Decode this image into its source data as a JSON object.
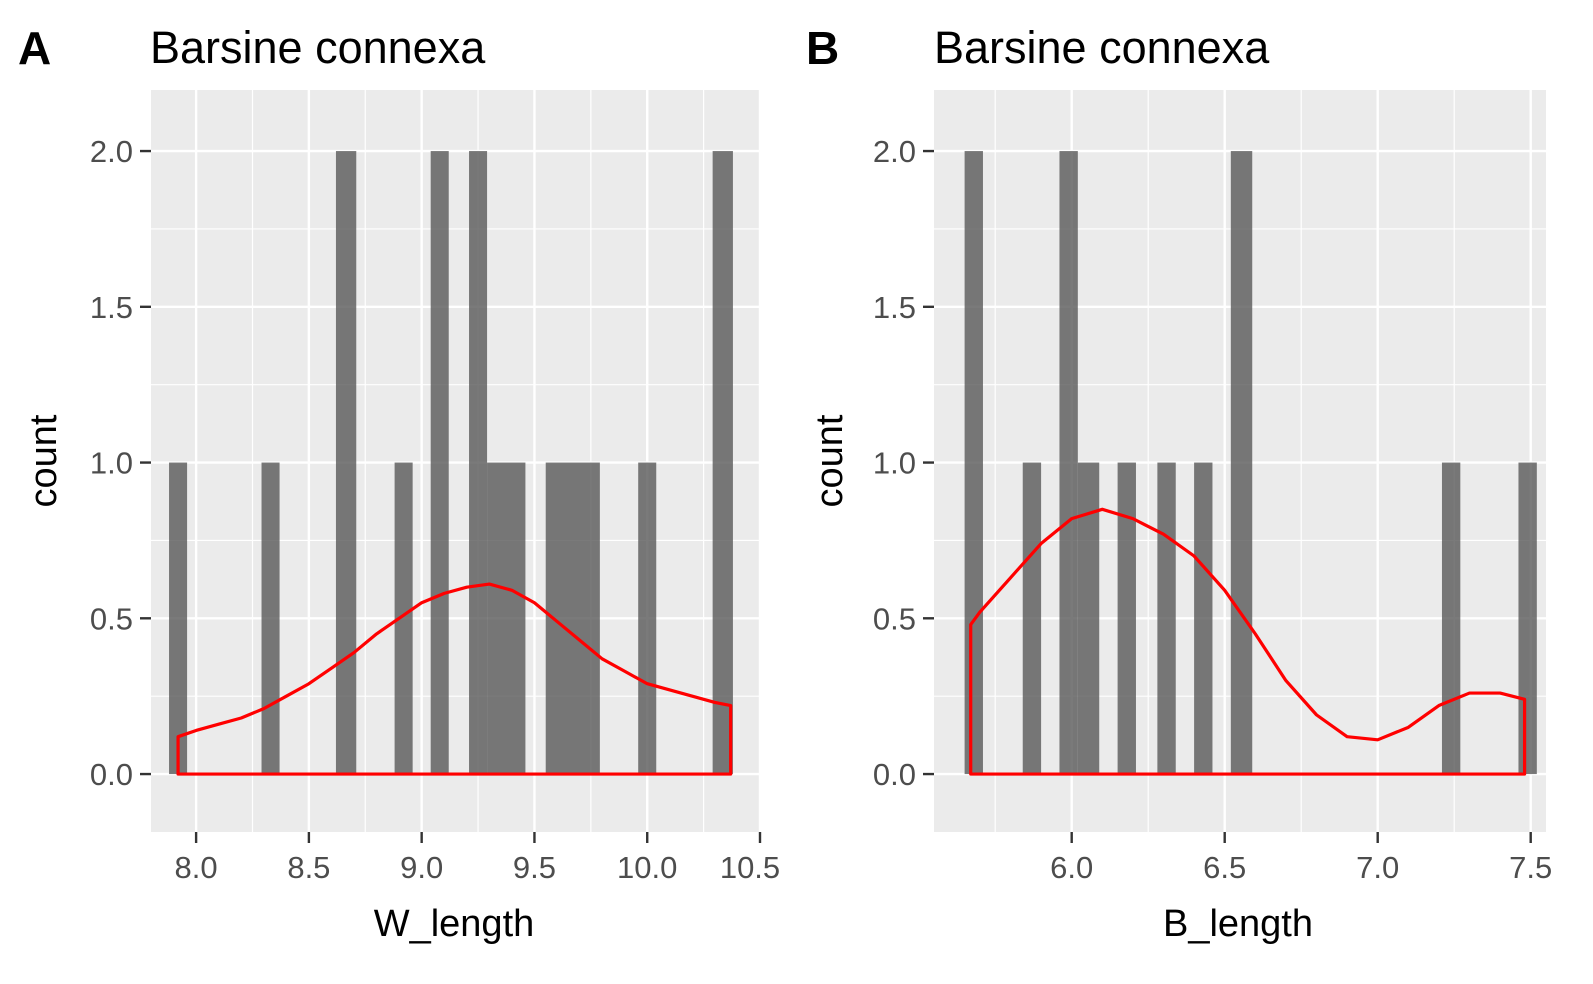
{
  "chart_data": [
    {
      "type": "bar",
      "panel_tag": "A",
      "title": "Barsine connexa",
      "xlabel": "W_length",
      "ylabel": "count",
      "xlim": [
        7.8,
        10.5
      ],
      "ylim": [
        0,
        2.0
      ],
      "xticks": [
        8.0,
        8.5,
        9.0,
        9.5,
        10.0,
        10.5
      ],
      "xtick_labels": [
        "8.0",
        "8.5",
        "9.0",
        "9.5",
        "10.0",
        "10.5"
      ],
      "yticks": [
        0.0,
        0.5,
        1.0,
        1.5,
        2.0
      ],
      "ytick_labels": [
        "0.0",
        "0.5",
        "1.0",
        "1.5",
        "2.0"
      ],
      "grid": true,
      "bars": [
        {
          "x0": 7.88,
          "x1": 7.96,
          "count": 1
        },
        {
          "x0": 8.29,
          "x1": 8.37,
          "count": 1
        },
        {
          "x0": 8.62,
          "x1": 8.71,
          "count": 2
        },
        {
          "x0": 8.88,
          "x1": 8.96,
          "count": 1
        },
        {
          "x0": 9.04,
          "x1": 9.12,
          "count": 2
        },
        {
          "x0": 9.21,
          "x1": 9.29,
          "count": 2
        },
        {
          "x0": 9.29,
          "x1": 9.46,
          "count": 1
        },
        {
          "x0": 9.55,
          "x1": 9.79,
          "count": 1
        },
        {
          "x0": 9.96,
          "x1": 10.04,
          "count": 1
        },
        {
          "x0": 10.29,
          "x1": 10.38,
          "count": 2
        }
      ],
      "density": {
        "color": "#ff0000",
        "x": [
          7.92,
          8.0,
          8.1,
          8.2,
          8.3,
          8.4,
          8.5,
          8.6,
          8.7,
          8.8,
          8.9,
          9.0,
          9.1,
          9.2,
          9.3,
          9.4,
          9.5,
          9.6,
          9.7,
          9.8,
          9.9,
          10.0,
          10.1,
          10.2,
          10.3,
          10.37
        ],
        "y": [
          0.12,
          0.14,
          0.16,
          0.18,
          0.21,
          0.25,
          0.29,
          0.34,
          0.39,
          0.45,
          0.5,
          0.55,
          0.58,
          0.6,
          0.61,
          0.59,
          0.55,
          0.49,
          0.43,
          0.37,
          0.33,
          0.29,
          0.27,
          0.25,
          0.23,
          0.22
        ]
      }
    },
    {
      "type": "bar",
      "panel_tag": "B",
      "title": "Barsine connexa",
      "xlabel": "B_length",
      "ylabel": "count",
      "xlim": [
        5.55,
        7.55
      ],
      "ylim": [
        0,
        2.0
      ],
      "xticks": [
        6.0,
        6.5,
        7.0,
        7.5
      ],
      "xtick_labels": [
        "6.0",
        "6.5",
        "7.0",
        "7.5"
      ],
      "yticks": [
        0.0,
        0.5,
        1.0,
        1.5,
        2.0
      ],
      "ytick_labels": [
        "0.0",
        "0.5",
        "1.0",
        "1.5",
        "2.0"
      ],
      "grid": true,
      "bars": [
        {
          "x0": 5.65,
          "x1": 5.71,
          "count": 2
        },
        {
          "x0": 5.84,
          "x1": 5.9,
          "count": 1
        },
        {
          "x0": 5.96,
          "x1": 6.02,
          "count": 2
        },
        {
          "x0": 6.02,
          "x1": 6.09,
          "count": 1
        },
        {
          "x0": 6.15,
          "x1": 6.21,
          "count": 1
        },
        {
          "x0": 6.28,
          "x1": 6.34,
          "count": 1
        },
        {
          "x0": 6.4,
          "x1": 6.46,
          "count": 1
        },
        {
          "x0": 6.52,
          "x1": 6.59,
          "count": 2
        },
        {
          "x0": 7.21,
          "x1": 7.27,
          "count": 1
        },
        {
          "x0": 7.46,
          "x1": 7.52,
          "count": 1
        }
      ],
      "density": {
        "color": "#ff0000",
        "x": [
          5.67,
          5.7,
          5.8,
          5.9,
          6.0,
          6.1,
          6.2,
          6.3,
          6.4,
          6.5,
          6.6,
          6.7,
          6.8,
          6.9,
          7.0,
          7.1,
          7.2,
          7.3,
          7.4,
          7.48
        ],
        "y": [
          0.48,
          0.52,
          0.63,
          0.74,
          0.82,
          0.85,
          0.82,
          0.77,
          0.7,
          0.59,
          0.45,
          0.3,
          0.19,
          0.12,
          0.11,
          0.15,
          0.22,
          0.26,
          0.26,
          0.24
        ]
      }
    }
  ]
}
